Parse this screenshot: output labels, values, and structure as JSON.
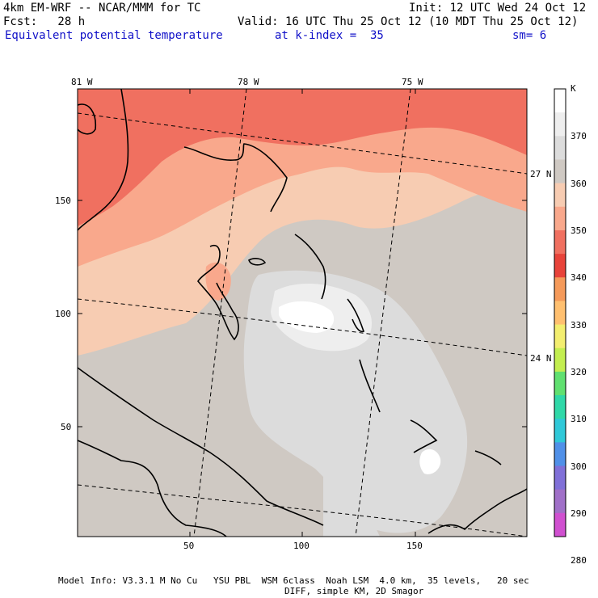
{
  "header": {
    "model_line": "4km EM-WRF -- NCAR/MMM for TC",
    "forecast_line": "Fcst:   28 h",
    "init_line": "Init: 12 UTC Wed 24 Oct 12",
    "valid_line": "Valid: 16 UTC Thu 25 Oct 12 (10 MDT Thu 25 Oct 12)",
    "field_name": "Equivalent potential temperature",
    "level_line": "at k-index =  35",
    "smooth_line": "sm= 6"
  },
  "map": {
    "longitude_labels": [
      "81 W",
      "78 W",
      "75 W"
    ],
    "latitude_labels": [
      "27 N",
      "24 N"
    ],
    "x_ticks": [
      "50",
      "100",
      "150"
    ],
    "y_ticks": [
      "150",
      "100",
      "50"
    ]
  },
  "colorbar": {
    "unit": "K",
    "labels": [
      "370",
      "360",
      "350",
      "340",
      "330",
      "320",
      "310",
      "300",
      "290",
      "280"
    ],
    "colors": [
      "#ffffff",
      "#eeeeee",
      "#dcdcdc",
      "#cfc9c3",
      "#f7ccb2",
      "#f9a88c",
      "#f07060",
      "#e8433a",
      "#f59a5a",
      "#ffc070",
      "#f3ee70",
      "#c3ee50",
      "#60e070",
      "#30d8a8",
      "#30c8d8",
      "#5090e8",
      "#8070d8",
      "#a070c8",
      "#d050d0"
    ]
  },
  "footer": {
    "line1": "Model Info: V3.3.1 M No Cu   YSU PBL  WSM 6class  Noah LSM  4.0 km,  35 levels,   20 sec",
    "line2": "DIFF, simple KM, 2D Smagor"
  }
}
